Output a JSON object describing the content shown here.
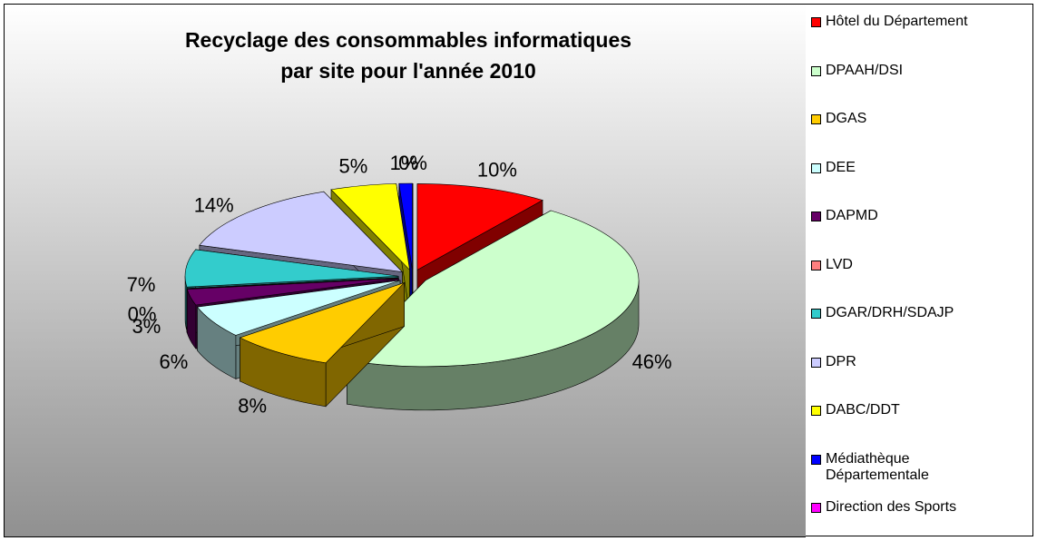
{
  "chart_data": {
    "type": "pie",
    "title": [
      "Recyclage des consommables informatiques",
      "par site pour l'année 2010"
    ],
    "categories": [
      "Hôtel du Département",
      "DPAAH/DSI",
      "DGAS",
      "DEE",
      "DAPMD",
      "LVD",
      "DGAR/DRH/SDAJP",
      "DPR",
      "DABC/DDT",
      "Médiathèque Départementale",
      "Direction des Sports"
    ],
    "values": [
      10,
      46,
      8,
      6,
      3,
      0,
      7,
      14,
      5,
      1,
      0
    ],
    "value_labels": [
      "10%",
      "46%",
      "8%",
      "6%",
      "3%",
      "0%",
      "7%",
      "14%",
      "5%",
      "1%",
      "0%"
    ],
    "colors": [
      "#ff0000",
      "#ccffcc",
      "#ffcc00",
      "#ccffff",
      "#660066",
      "#ff8080",
      "#33cccc",
      "#ccccff",
      "#ffff00",
      "#0000ff",
      "#ff00ff"
    ],
    "legend": "right"
  }
}
